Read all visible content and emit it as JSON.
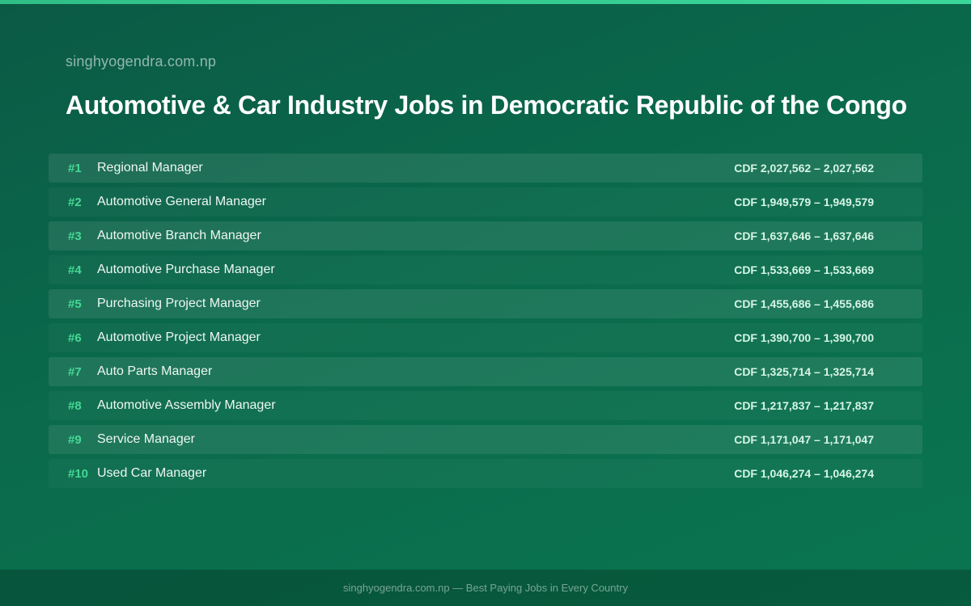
{
  "header": {
    "site_name": "singhyogendra.com.np",
    "title": "Automotive & Car Industry Jobs in Democratic Republic of the Congo"
  },
  "jobs": [
    {
      "rank": "#1",
      "title": "Regional Manager",
      "salary": "CDF 2,027,562 – 2,027,562"
    },
    {
      "rank": "#2",
      "title": "Automotive General Manager",
      "salary": "CDF 1,949,579 – 1,949,579"
    },
    {
      "rank": "#3",
      "title": "Automotive Branch Manager",
      "salary": "CDF 1,637,646 – 1,637,646"
    },
    {
      "rank": "#4",
      "title": "Automotive Purchase Manager",
      "salary": "CDF 1,533,669 – 1,533,669"
    },
    {
      "rank": "#5",
      "title": "Purchasing Project Manager",
      "salary": "CDF 1,455,686 – 1,455,686"
    },
    {
      "rank": "#6",
      "title": "Automotive Project Manager",
      "salary": "CDF 1,390,700 – 1,390,700"
    },
    {
      "rank": "#7",
      "title": "Auto Parts Manager",
      "salary": "CDF 1,325,714 – 1,325,714"
    },
    {
      "rank": "#8",
      "title": "Automotive Assembly Manager",
      "salary": "CDF 1,217,837 – 1,217,837"
    },
    {
      "rank": "#9",
      "title": "Service Manager",
      "salary": "CDF 1,171,047 – 1,171,047"
    },
    {
      "rank": "#10",
      "title": "Used Car Manager",
      "salary": "CDF 1,046,274 – 1,046,274"
    }
  ],
  "footer": {
    "text": "singhyogendra.com.np — Best Paying Jobs in Every Country"
  },
  "colors": {
    "background_start": "#0b5a45",
    "background_end": "#0a7550",
    "accent": "#3ad69a",
    "rank": "#46d895"
  }
}
